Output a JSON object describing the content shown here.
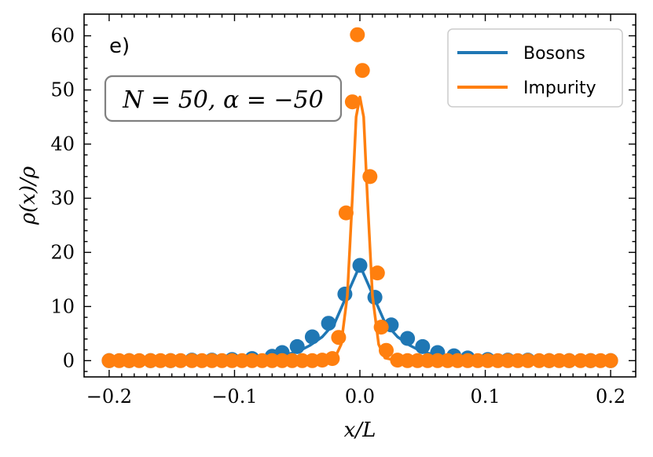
{
  "chart_data": {
    "type": "line",
    "panel_label": "e)",
    "annotation": "N = 50, α = −50",
    "xlabel": "x/L",
    "ylabel": "ρ(x)/ρ",
    "xlim": [
      -0.22,
      0.22
    ],
    "ylim": [
      -3,
      64
    ],
    "xticks": [
      -0.2,
      -0.1,
      0.0,
      0.1,
      0.2
    ],
    "xtick_labels": [
      "−0.2",
      "−0.1",
      "0.0",
      "0.1",
      "0.2"
    ],
    "yticks": [
      0,
      10,
      20,
      30,
      40,
      50,
      60
    ],
    "ytick_labels": [
      "0",
      "10",
      "20",
      "30",
      "40",
      "50",
      "60"
    ],
    "grid": false,
    "legend_position": "top-right",
    "legend": [
      "Bosons",
      "Impurity"
    ],
    "colors": {
      "bosons": "#1f77b4",
      "impurity": "#ff7f0e",
      "box_edge": "#808080"
    },
    "series": [
      {
        "name": "Bosons",
        "color": "#1f77b4",
        "line": [
          [
            -0.2,
            0.0
          ],
          [
            -0.1,
            0.0
          ],
          [
            -0.07,
            0.6
          ],
          [
            -0.05,
            1.6
          ],
          [
            -0.04,
            2.8
          ],
          [
            -0.03,
            4.4
          ],
          [
            -0.02,
            7.0
          ],
          [
            -0.01,
            12.3
          ],
          [
            0.0,
            17.6
          ],
          [
            0.01,
            12.3
          ],
          [
            0.02,
            7.0
          ],
          [
            0.03,
            4.4
          ],
          [
            0.04,
            2.8
          ],
          [
            0.05,
            1.6
          ],
          [
            0.07,
            0.6
          ],
          [
            0.1,
            0.0
          ],
          [
            0.2,
            0.0
          ]
        ],
        "points": [
          [
            -0.2,
            0.0
          ],
          [
            -0.184,
            0.0
          ],
          [
            -0.167,
            0.0
          ],
          [
            -0.151,
            0.0
          ],
          [
            -0.134,
            0.1
          ],
          [
            -0.118,
            0.1
          ],
          [
            -0.102,
            0.2
          ],
          [
            -0.086,
            0.4
          ],
          [
            -0.07,
            0.8
          ],
          [
            -0.062,
            1.5
          ],
          [
            -0.05,
            2.6
          ],
          [
            -0.038,
            4.4
          ],
          [
            -0.025,
            6.9
          ],
          [
            -0.012,
            12.3
          ],
          [
            0.0,
            17.6
          ],
          [
            0.012,
            11.7
          ],
          [
            0.025,
            6.6
          ],
          [
            0.038,
            4.1
          ],
          [
            0.05,
            2.6
          ],
          [
            0.062,
            1.5
          ],
          [
            0.075,
            0.9
          ],
          [
            0.086,
            0.5
          ],
          [
            0.102,
            0.2
          ],
          [
            0.118,
            0.1
          ],
          [
            0.134,
            0.1
          ],
          [
            0.151,
            0.0
          ],
          [
            0.167,
            0.0
          ],
          [
            0.184,
            0.0
          ],
          [
            0.2,
            0.0
          ]
        ]
      },
      {
        "name": "Impurity",
        "color": "#ff7f0e",
        "line": [
          [
            -0.2,
            0.0
          ],
          [
            -0.03,
            0.0
          ],
          [
            -0.02,
            0.5
          ],
          [
            -0.015,
            3.0
          ],
          [
            -0.01,
            12.0
          ],
          [
            -0.006,
            30.0
          ],
          [
            -0.003,
            45.0
          ],
          [
            0.0,
            48.7
          ],
          [
            0.003,
            45.0
          ],
          [
            0.006,
            30.0
          ],
          [
            0.01,
            12.0
          ],
          [
            0.015,
            3.0
          ],
          [
            0.02,
            0.5
          ],
          [
            0.03,
            0.0
          ],
          [
            0.2,
            0.0
          ]
        ],
        "points": [
          [
            -0.2,
            0.0
          ],
          [
            -0.192,
            0.0
          ],
          [
            -0.184,
            0.0
          ],
          [
            -0.176,
            0.0
          ],
          [
            -0.167,
            0.0
          ],
          [
            -0.159,
            0.0
          ],
          [
            -0.151,
            0.0
          ],
          [
            -0.143,
            0.0
          ],
          [
            -0.134,
            0.0
          ],
          [
            -0.126,
            0.0
          ],
          [
            -0.118,
            0.0
          ],
          [
            -0.11,
            0.0
          ],
          [
            -0.102,
            0.0
          ],
          [
            -0.094,
            0.0
          ],
          [
            -0.086,
            0.0
          ],
          [
            -0.078,
            0.0
          ],
          [
            -0.07,
            0.0
          ],
          [
            -0.062,
            0.0
          ],
          [
            -0.054,
            0.0
          ],
          [
            -0.046,
            0.0
          ],
          [
            -0.038,
            0.0
          ],
          [
            -0.03,
            0.1
          ],
          [
            -0.022,
            0.4
          ],
          [
            -0.017,
            4.3
          ],
          [
            -0.011,
            27.3
          ],
          [
            -0.006,
            47.8
          ],
          [
            -0.002,
            60.2
          ],
          [
            0.002,
            53.6
          ],
          [
            0.008,
            34.0
          ],
          [
            0.014,
            16.2
          ],
          [
            0.017,
            6.2
          ],
          [
            0.021,
            1.9
          ],
          [
            0.03,
            0.1
          ],
          [
            0.038,
            0.0
          ],
          [
            0.046,
            0.0
          ],
          [
            0.054,
            0.0
          ],
          [
            0.062,
            0.0
          ],
          [
            0.07,
            0.0
          ],
          [
            0.078,
            0.0
          ],
          [
            0.086,
            0.0
          ],
          [
            0.094,
            0.0
          ],
          [
            0.102,
            0.0
          ],
          [
            0.11,
            0.0
          ],
          [
            0.118,
            0.0
          ],
          [
            0.126,
            0.0
          ],
          [
            0.134,
            0.0
          ],
          [
            0.143,
            0.0
          ],
          [
            0.151,
            0.0
          ],
          [
            0.159,
            0.0
          ],
          [
            0.167,
            0.0
          ],
          [
            0.176,
            0.0
          ],
          [
            0.184,
            0.0
          ],
          [
            0.192,
            0.0
          ],
          [
            0.2,
            0.0
          ]
        ]
      }
    ]
  }
}
